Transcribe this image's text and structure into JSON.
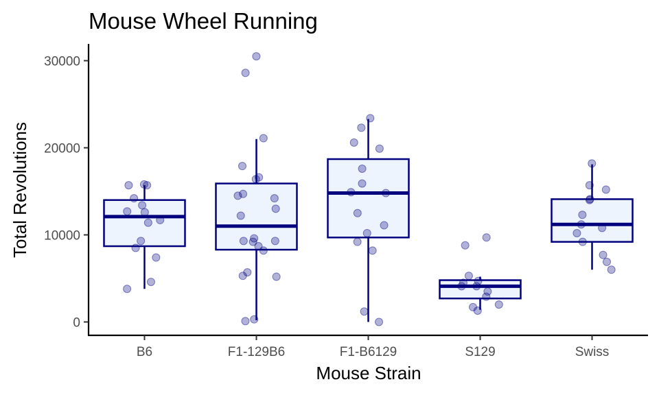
{
  "chart_data": {
    "type": "box",
    "title": "Mouse Wheel Running",
    "xlabel": "Mouse Strain",
    "ylabel": "Total Revolutions",
    "ylim": [
      -1500,
      33000
    ],
    "yticks": [
      0,
      10000,
      20000,
      30000
    ],
    "ytick_labels": [
      "0",
      "10000",
      "20000",
      "30000"
    ],
    "grid": false,
    "legend": "none",
    "colors": {
      "box_fill": "#eef4fe",
      "box_stroke": "#00007f",
      "points": "#00007f"
    },
    "categories": [
      "B6",
      "F1-129B6",
      "F1-B6129",
      "S129",
      "Swiss"
    ],
    "boxes": [
      {
        "category": "B6",
        "whisker_low": 3800,
        "q1": 8700,
        "median": 12100,
        "q3": 14000,
        "whisker_high": 15700
      },
      {
        "category": "F1-129B6",
        "whisker_low": 200,
        "q1": 8300,
        "median": 11000,
        "q3": 15900,
        "whisker_high": 21000
      },
      {
        "category": "F1-B6129",
        "whisker_low": 0,
        "q1": 9700,
        "median": 14800,
        "q3": 18700,
        "whisker_high": 23300
      },
      {
        "category": "S129",
        "whisker_low": 1400,
        "q1": 2700,
        "median": 4100,
        "q3": 4800,
        "whisker_high": 5200
      },
      {
        "category": "Swiss",
        "whisker_low": 6000,
        "q1": 9200,
        "median": 11200,
        "q3": 14100,
        "whisker_high": 18100
      }
    ],
    "points": [
      {
        "category": "B6",
        "values": [
          15800,
          15700,
          15700,
          14200,
          13400,
          12600,
          12700,
          11700,
          11400,
          9300,
          8500,
          7400,
          4600,
          3800
        ]
      },
      {
        "category": "F1-129B6",
        "values": [
          30500,
          28600,
          21100,
          17900,
          16600,
          16400,
          14700,
          14500,
          14200,
          13000,
          12200,
          9600,
          9300,
          9300,
          9200,
          8700,
          8200,
          5700,
          5300,
          5200,
          300,
          100
        ]
      },
      {
        "category": "F1-B6129",
        "values": [
          23400,
          22300,
          20600,
          19900,
          17600,
          15900,
          14900,
          14800,
          12500,
          11100,
          10200,
          9200,
          8200,
          1200,
          0
        ]
      },
      {
        "category": "S129",
        "values": [
          9700,
          8800,
          5300,
          4700,
          4500,
          4100,
          4100,
          3500,
          2900,
          2000,
          1700,
          1300
        ]
      },
      {
        "category": "Swiss",
        "values": [
          18200,
          15700,
          15200,
          14100,
          14000,
          12300,
          11200,
          10800,
          10200,
          9200,
          7700,
          6900,
          6000
        ]
      }
    ]
  }
}
